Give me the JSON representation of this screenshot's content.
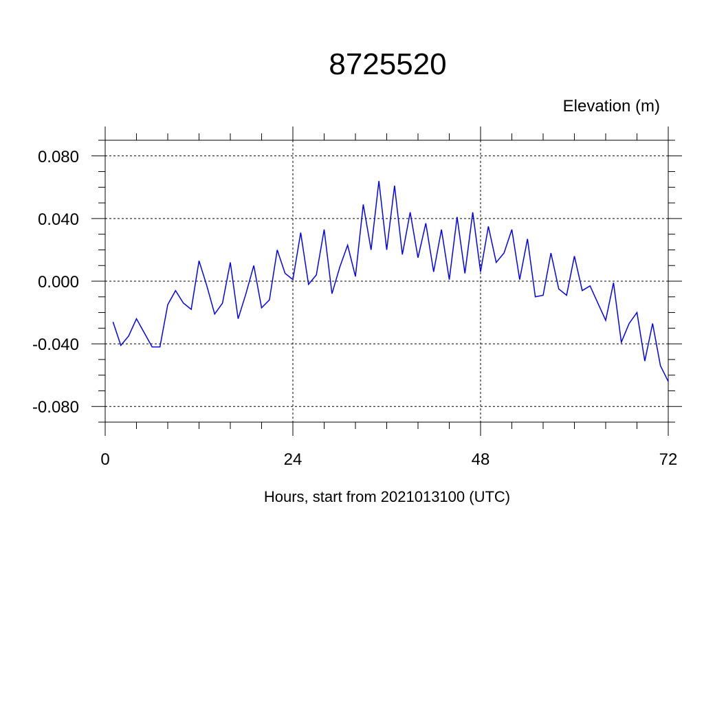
{
  "chart_data": {
    "type": "line",
    "title": "8725520",
    "ylabel": "Elevation (m)",
    "xlabel": "Hours, start from 2021013100 (UTC)",
    "xlim": [
      0,
      72
    ],
    "ylim": [
      -0.09,
      0.09
    ],
    "x_ticks": [
      0,
      24,
      48,
      72
    ],
    "x_tick_labels": [
      "0",
      "24",
      "48",
      "72"
    ],
    "y_ticks": [
      0.08,
      0.04,
      0.0,
      -0.04,
      -0.08
    ],
    "y_tick_labels": [
      "0.080",
      "0.040",
      "0.000",
      "-0.040",
      "-0.080"
    ],
    "grid": true,
    "series": [
      {
        "color": "#0000ff",
        "x": [
          1,
          2,
          3,
          4,
          5,
          6,
          7,
          8,
          9,
          10,
          11,
          12,
          13,
          14,
          15,
          16,
          17,
          18,
          19,
          20,
          21,
          22,
          23,
          24,
          25,
          26,
          27,
          28,
          29,
          30,
          31,
          32,
          33,
          34,
          35,
          36,
          37,
          38,
          39,
          40,
          41,
          42,
          43,
          44,
          45,
          46,
          47,
          48,
          49,
          50,
          51,
          52,
          53,
          54,
          55,
          56,
          57,
          58,
          59,
          60,
          61,
          62,
          63,
          64,
          65,
          66,
          67,
          68,
          69,
          70,
          71,
          72
        ],
        "values": [
          -0.026,
          -0.041,
          -0.035,
          -0.024,
          -0.033,
          -0.042,
          -0.042,
          -0.015,
          -0.006,
          -0.014,
          -0.018,
          0.013,
          -0.003,
          -0.021,
          -0.014,
          0.012,
          -0.024,
          -0.008,
          0.01,
          -0.017,
          -0.012,
          0.02,
          0.005,
          0.001,
          0.031,
          -0.002,
          0.004,
          0.033,
          -0.008,
          0.009,
          0.023,
          0.003,
          0.049,
          0.02,
          0.064,
          0.02,
          0.061,
          0.017,
          0.044,
          0.015,
          0.037,
          0.006,
          0.033,
          0.001,
          0.041,
          0.005,
          0.044,
          0.006,
          0.035,
          0.012,
          0.018,
          0.033,
          0.001,
          0.027,
          -0.01,
          -0.009,
          0.018,
          -0.005,
          -0.009,
          0.016,
          -0.006,
          -0.003,
          -0.014,
          -0.025,
          -0.001,
          -0.039,
          -0.027,
          -0.02,
          -0.051,
          -0.027,
          -0.054,
          -0.064
        ]
      }
    ]
  }
}
